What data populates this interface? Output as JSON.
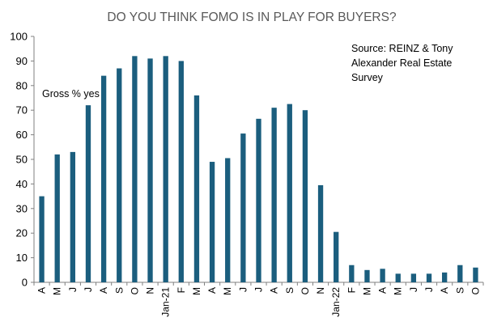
{
  "chart_data": {
    "type": "bar",
    "title": "DO YOU THINK FOMO IS IN PLAY FOR BUYERS?",
    "series_label": "Gross % yes",
    "source_lines": [
      "Source: REINZ & Tony",
      "Alexander  Real Estate",
      "Survey"
    ],
    "categories": [
      "A",
      "M",
      "J",
      "J",
      "A",
      "S",
      "O",
      "N",
      "Jan-21",
      "F",
      "M",
      "A",
      "M",
      "J",
      "J",
      "A",
      "S",
      "O",
      "N",
      "Jan-22",
      "F",
      "M",
      "A",
      "M",
      "J",
      "J",
      "A",
      "S",
      "O"
    ],
    "values": [
      35,
      52,
      53,
      72,
      84,
      87,
      92,
      91,
      92,
      90,
      76,
      49,
      50.5,
      60.5,
      66.5,
      71,
      72.5,
      70,
      39.5,
      20.5,
      7,
      5,
      5.5,
      3.5,
      3.5,
      3.5,
      4,
      7,
      6
    ],
    "xlabel": "",
    "ylabel": "",
    "ylim": [
      0,
      100
    ],
    "yticks": [
      "0",
      "10",
      "20",
      "30",
      "40",
      "50",
      "60",
      "70",
      "80",
      "90",
      "100"
    ],
    "grid": false,
    "legend": "none",
    "bar_color": "#1B5E7E"
  }
}
